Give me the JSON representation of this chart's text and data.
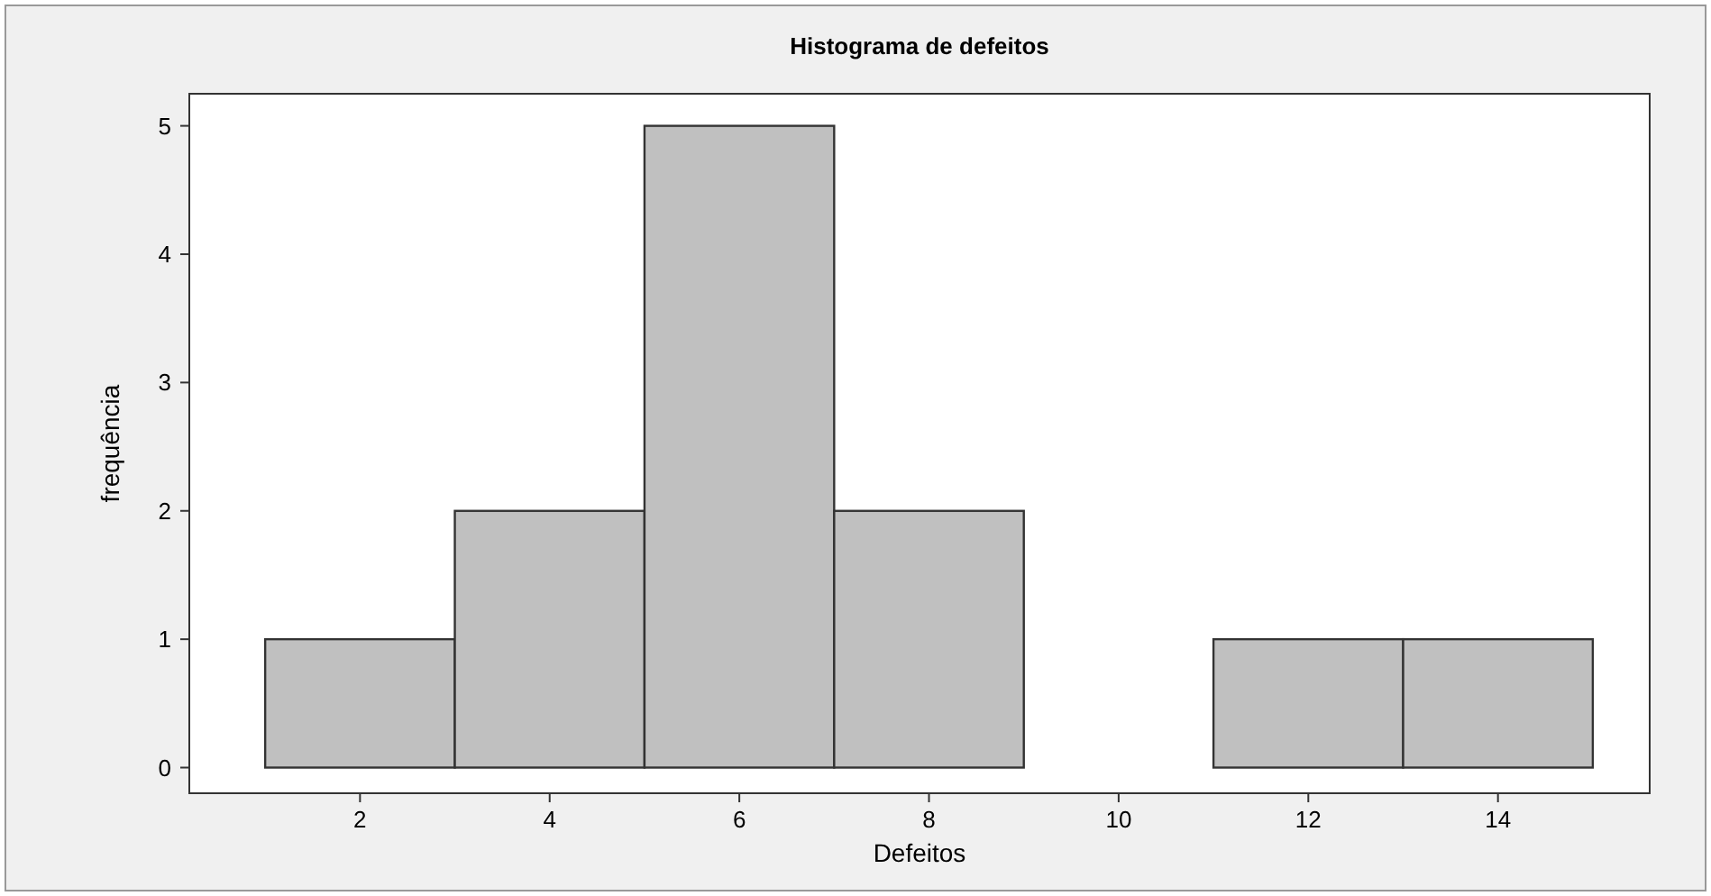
{
  "chart_data": {
    "type": "histogram",
    "title": "Histograma de defeitos",
    "xlabel": "Defeitos",
    "ylabel": "frequência",
    "bins": [
      1,
      3,
      5,
      7,
      9,
      11,
      13,
      15
    ],
    "values": [
      1,
      2,
      5,
      2,
      0,
      1,
      1
    ],
    "color": "#c0c0c0",
    "xlim": [
      0.2,
      15.6
    ],
    "xticks": [
      2,
      4,
      6,
      8,
      10,
      12,
      14
    ],
    "ylim": [
      -0.2,
      5.25
    ],
    "yticks": [
      0,
      1,
      2,
      3,
      4,
      5
    ],
    "grid": false
  }
}
